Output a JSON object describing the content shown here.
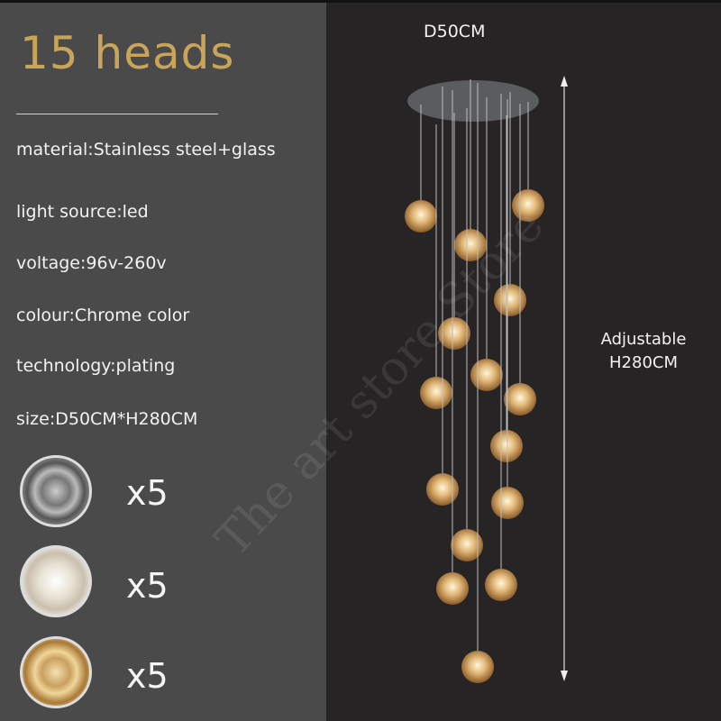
{
  "left_panel": {
    "title": "15 heads",
    "specs": [
      "material:Stainless steel+glass",
      "light source:led",
      "voltage:96v-260v",
      "colour:Chrome color",
      "technology:plating",
      "size:D50CM*H280CM"
    ],
    "variants": [
      {
        "icon": "smoke-glass-ball",
        "color": "#8a8580",
        "quantity": "x5"
      },
      {
        "icon": "clear-glass-ball",
        "color": "#d8d0c0",
        "quantity": "x5"
      },
      {
        "icon": "amber-glass-ball",
        "color": "#c9a060",
        "quantity": "x5"
      }
    ]
  },
  "right_panel": {
    "diameter_label": "D50CM",
    "height_label_line1": "Adjustable",
    "height_label_line2": "H280CM",
    "canopy_color": "#5a5c5e",
    "ball_color": "#d9a866"
  },
  "watermark": "The art store Store",
  "colors": {
    "title": "#c9a55a",
    "left_bg": "#4a4a4a",
    "right_bg": "#262424"
  }
}
